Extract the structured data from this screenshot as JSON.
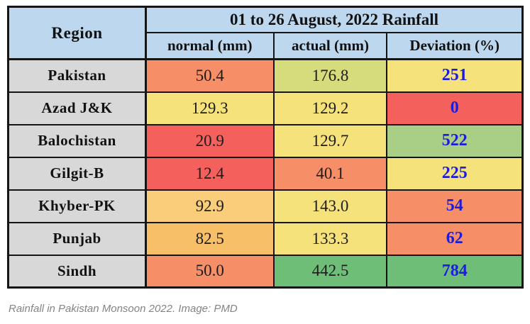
{
  "palette": {
    "header_bg": "#BDD7EE",
    "region_bg": "#D8D8D8",
    "deviation_text": "#1C1CD9",
    "red": "#F4615C",
    "yellow": "#F5E27A",
    "olive": "#D6DB7B",
    "salmon": "#F68E68",
    "amber_light": "#F9CD79",
    "amber": "#F6BF68",
    "green_light": "#A9CF87",
    "green": "#6EBE77"
  },
  "table": {
    "header": {
      "region": "Region",
      "title": "01 to 26 August, 2022 Rainfall",
      "cols": [
        "normal (mm)",
        "actual (mm)",
        "Deviation (%)"
      ]
    },
    "rows": [
      {
        "region": "Pakistan",
        "normal": "50.4",
        "actual": "176.8",
        "deviation": "251",
        "bg": {
          "normal": "#F68E68",
          "actual": "#D6DB7B",
          "deviation": "#F5E27A"
        }
      },
      {
        "region": "Azad J&K",
        "normal": "129.3",
        "actual": "129.2",
        "deviation": "0",
        "bg": {
          "normal": "#F5E27A",
          "actual": "#F5E27A",
          "deviation": "#F4615C"
        }
      },
      {
        "region": "Balochistan",
        "normal": "20.9",
        "actual": "129.7",
        "deviation": "522",
        "bg": {
          "normal": "#F4615C",
          "actual": "#F5E27A",
          "deviation": "#A9CF87"
        }
      },
      {
        "region": "Gilgit-B",
        "normal": "12.4",
        "actual": "40.1",
        "deviation": "225",
        "bg": {
          "normal": "#F4615C",
          "actual": "#F68E68",
          "deviation": "#F5E27A"
        }
      },
      {
        "region": "Khyber-PK",
        "normal": "92.9",
        "actual": "143.0",
        "deviation": "54",
        "bg": {
          "normal": "#F9CD79",
          "actual": "#F5E27A",
          "deviation": "#F68E68"
        }
      },
      {
        "region": "Punjab",
        "normal": "82.5",
        "actual": "133.3",
        "deviation": "62",
        "bg": {
          "normal": "#F6BF68",
          "actual": "#F5E27A",
          "deviation": "#F68E68"
        }
      },
      {
        "region": "Sindh",
        "normal": "50.0",
        "actual": "442.5",
        "deviation": "784",
        "bg": {
          "normal": "#F68E68",
          "actual": "#6EBE77",
          "deviation": "#6EBE77"
        }
      }
    ]
  },
  "caption": {
    "text": "Rainfall in Pakistan Monsoon 2022. Image: PMD"
  },
  "chart_data": {
    "type": "table",
    "title": "01 to 26 August, 2022 Rainfall",
    "columns": [
      "Region",
      "normal (mm)",
      "actual (mm)",
      "Deviation (%)"
    ],
    "rows": [
      [
        "Pakistan",
        50.4,
        176.8,
        251
      ],
      [
        "Azad J&K",
        129.3,
        129.2,
        0
      ],
      [
        "Balochistan",
        20.9,
        129.7,
        522
      ],
      [
        "Gilgit-B",
        12.4,
        40.1,
        225
      ],
      [
        "Khyber-PK",
        92.9,
        143.0,
        54
      ],
      [
        "Punjab",
        82.5,
        133.3,
        62
      ],
      [
        "Sindh",
        50.0,
        442.5,
        784
      ]
    ],
    "notes": "Cell fills encode rainfall intensity (red=low, yellow=mid, green=high); deviation values shown in bold blue"
  }
}
